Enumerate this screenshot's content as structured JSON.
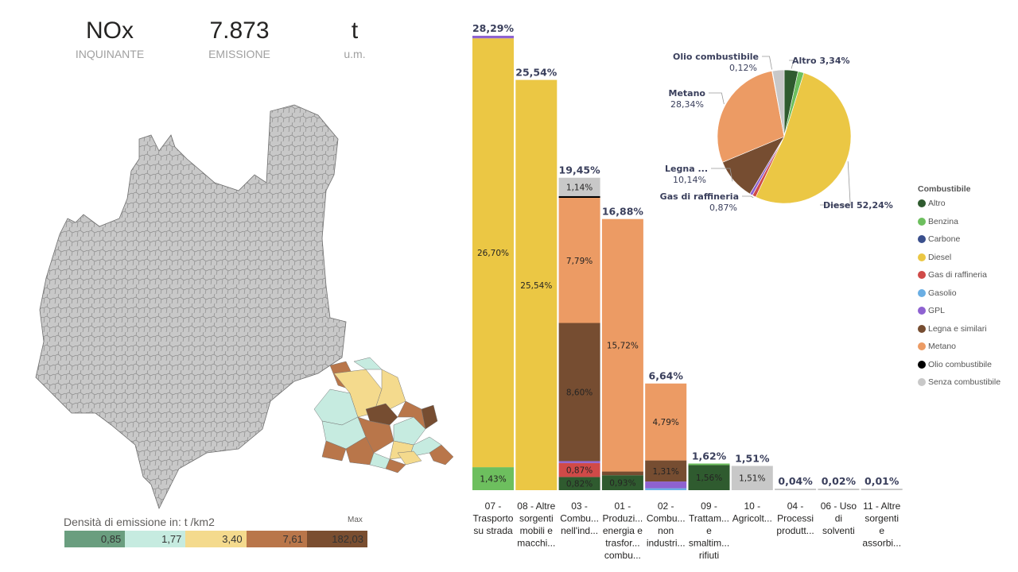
{
  "kpis": [
    {
      "value": "NOx",
      "label": "INQUINANTE"
    },
    {
      "value": "7.873",
      "label": "EMISSIONE"
    },
    {
      "value": "t",
      "label": "u.m."
    }
  ],
  "map_legend": {
    "title": "Densità di emissione in: t /km2",
    "max_label": "Max",
    "bins": [
      {
        "value": "0,85",
        "color": "#6a9e7f"
      },
      {
        "value": "1,77",
        "color": "#c6ebe0"
      },
      {
        "value": "3,40",
        "color": "#f4da8d"
      },
      {
        "value": "7,61",
        "color": "#b9764a"
      },
      {
        "value": "182,03",
        "color": "#7a4e30"
      }
    ]
  },
  "colors": {
    "Altro": "#2f5b2f",
    "Benzina": "#6dbf5e",
    "Carbone": "#3a4f8c",
    "Diesel": "#ebc744",
    "Gas di raffineria": "#d04a48",
    "Gasolio": "#6aaee3",
    "GPL": "#8e62d1",
    "Legna e similari": "#764d31",
    "Metano": "#ec9b64",
    "Olio combustibile": "#000000",
    "Senza combustibile": "#c8c8c8"
  },
  "chart_data": [
    {
      "type": "bar",
      "stacked": true,
      "title": "",
      "xlabel": "",
      "ylabel": "",
      "ylim": [
        0,
        28.29
      ],
      "categories": [
        [
          "07 -",
          "Trasporto",
          "su strada"
        ],
        [
          "08 - Altre",
          "sorgenti",
          "mobili e",
          "macchi..."
        ],
        [
          "03 -",
          "Combu...",
          "nell'ind..."
        ],
        [
          "01 -",
          "Produzi...",
          "energia e",
          "trasfor...",
          "combu..."
        ],
        [
          "02 -",
          "Combu...",
          "non",
          "industri..."
        ],
        [
          "09 -",
          "Trattam...",
          "e",
          "smaltim...",
          "rifiuti"
        ],
        [
          "10 -",
          "Agricolt..."
        ],
        [
          "04 -",
          "Processi",
          "produtt..."
        ],
        [
          "06 - Uso",
          "di",
          "solventi"
        ],
        [
          "11 - Altre",
          "sorgenti",
          "e",
          "assorbi..."
        ]
      ],
      "totals": [
        "28,29%",
        "25,54%",
        "19,45%",
        "16,88%",
        "6,64%",
        "1,62%",
        "1,51%",
        "0,04%",
        "0,02%",
        "0,01%"
      ],
      "total_values": [
        28.29,
        25.54,
        19.45,
        16.88,
        6.64,
        1.62,
        1.51,
        0.04,
        0.02,
        0.01
      ],
      "stacks": [
        [
          {
            "fuel": "Benzina",
            "value": 1.43,
            "label": "1,43%"
          },
          {
            "fuel": "Diesel",
            "value": 26.7,
            "label": "26,70%"
          },
          {
            "fuel": "GPL",
            "value": 0.16,
            "label": ""
          }
        ],
        [
          {
            "fuel": "Diesel",
            "value": 25.54,
            "label": "25,54%"
          }
        ],
        [
          {
            "fuel": "Altro",
            "value": 0.82,
            "label": "0,82%"
          },
          {
            "fuel": "Gas di raffineria",
            "value": 0.87,
            "label": "0,87%"
          },
          {
            "fuel": "GPL",
            "value": 0.12,
            "label": ""
          },
          {
            "fuel": "Legna e similari",
            "value": 8.6,
            "label": "8,60%"
          },
          {
            "fuel": "Metano",
            "value": 7.79,
            "label": "7,79%"
          },
          {
            "fuel": "Olio combustibile",
            "value": 0.11,
            "label": ""
          },
          {
            "fuel": "Senza combustibile",
            "value": 1.14,
            "label": "1,14%"
          }
        ],
        [
          {
            "fuel": "Altro",
            "value": 0.93,
            "label": "0,93%"
          },
          {
            "fuel": "Legna e similari",
            "value": 0.23,
            "label": ""
          },
          {
            "fuel": "Metano",
            "value": 15.72,
            "label": "15,72%"
          }
        ],
        [
          {
            "fuel": "Gasolio",
            "value": 0.12,
            "label": ""
          },
          {
            "fuel": "GPL",
            "value": 0.42,
            "label": ""
          },
          {
            "fuel": "Legna e similari",
            "value": 1.31,
            "label": "1,31%"
          },
          {
            "fuel": "Metano",
            "value": 4.79,
            "label": "4,79%"
          }
        ],
        [
          {
            "fuel": "Altro",
            "value": 1.56,
            "label": "1,56%"
          },
          {
            "fuel": "Benzina",
            "value": 0.06,
            "label": ""
          }
        ],
        [
          {
            "fuel": "Senza combustibile",
            "value": 1.51,
            "label": "1,51%"
          }
        ],
        [
          {
            "fuel": "Senza combustibile",
            "value": 0.04,
            "label": ""
          }
        ],
        [
          {
            "fuel": "Senza combustibile",
            "value": 0.02,
            "label": ""
          }
        ],
        [
          {
            "fuel": "Senza combustibile",
            "value": 0.01,
            "label": ""
          }
        ]
      ]
    },
    {
      "type": "pie",
      "slices": [
        {
          "name": "Altro",
          "value": 3.34
        },
        {
          "name": "Benzina",
          "value": 1.43
        },
        {
          "name": "Diesel",
          "value": 52.24
        },
        {
          "name": "Gas di raffineria",
          "value": 0.87
        },
        {
          "name": "GPL",
          "value": 0.7
        },
        {
          "name": "Legna e similari",
          "value": 10.14
        },
        {
          "name": "Metano",
          "value": 28.34
        },
        {
          "name": "Olio combustibile",
          "value": 0.12
        },
        {
          "name": "Senza combustibile",
          "value": 2.82
        }
      ],
      "labels": [
        {
          "slice": "Altro",
          "line1": "Altro 3,34%",
          "line2": ""
        },
        {
          "slice": "Diesel",
          "line1": "Diesel 52,24%",
          "line2": ""
        },
        {
          "slice": "Gas di raffineria",
          "line1": "Gas di raffineria",
          "line2": "0,87%"
        },
        {
          "slice": "Legna e similari",
          "line1": "Legna ...",
          "line2": "10,14%"
        },
        {
          "slice": "Metano",
          "line1": "Metano",
          "line2": "28,34%"
        },
        {
          "slice": "Olio combustibile",
          "line1": "Olio combustibile",
          "line2": "0,12%"
        }
      ]
    }
  ],
  "fuel_legend": {
    "title": "Combustibile",
    "items": [
      "Altro",
      "Benzina",
      "Carbone",
      "Diesel",
      "Gas di raffineria",
      "Gasolio",
      "GPL",
      "Legna e similari",
      "Metano",
      "Olio combustibile",
      "Senza combustibile"
    ]
  }
}
